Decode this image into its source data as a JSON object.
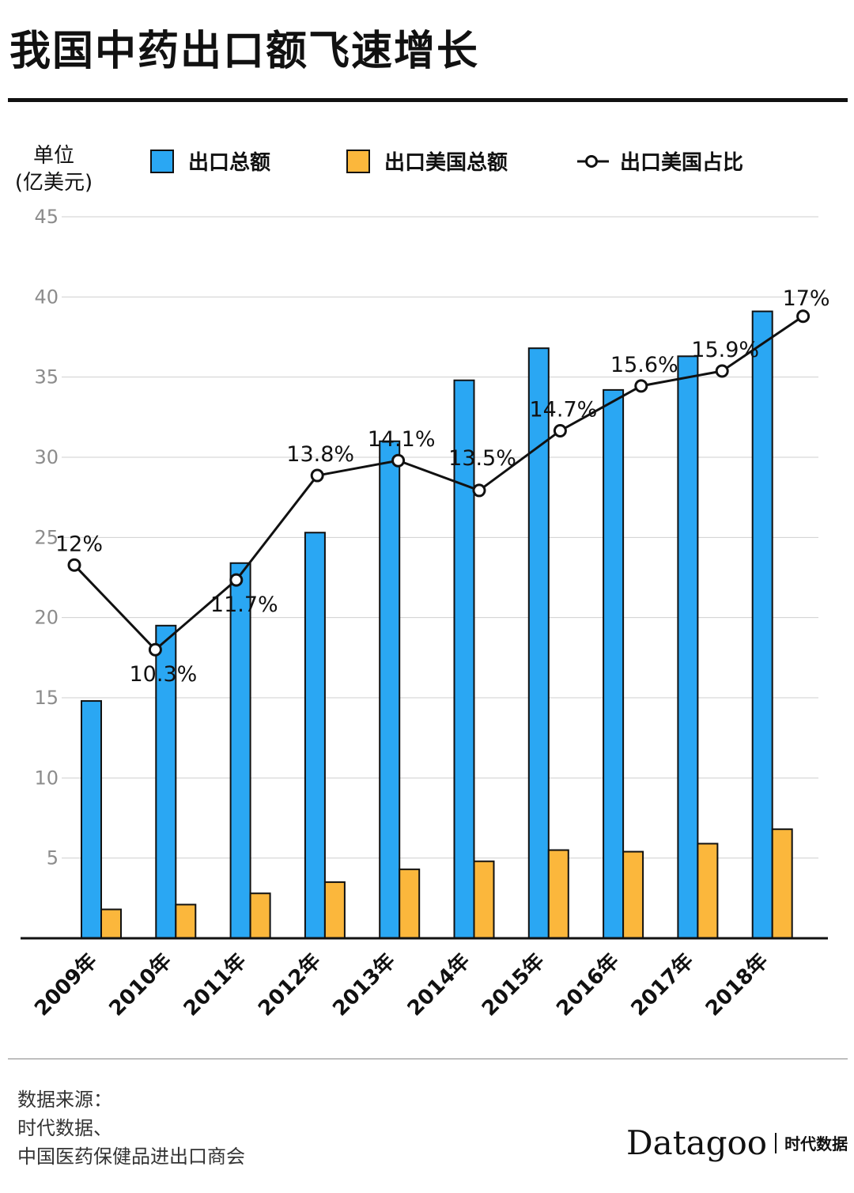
{
  "title": "我国中药出口额飞速增长",
  "unit_label": {
    "line1": "单位",
    "line2": "(亿美元)"
  },
  "legend": {
    "total": "出口总额",
    "us": "出口美国总额",
    "share": "出口美国占比"
  },
  "colors": {
    "total": "#2aa7f3",
    "us": "#fbb73c",
    "line": "#111111",
    "grid": "#cfcfcf",
    "tick": "#8c8c8c"
  },
  "source": {
    "line1": "数据来源：",
    "line2": "时代数据、",
    "line3": "中国医药保健品进出口商会"
  },
  "brand": {
    "name": "Datagoo",
    "cn": "时代数据"
  },
  "chart_data": {
    "type": "bar",
    "categories": [
      "2009年",
      "2010年",
      "2011年",
      "2012年",
      "2013年",
      "2014年",
      "2015年",
      "2016年",
      "2017年",
      "2018年"
    ],
    "ylim": [
      0,
      45
    ],
    "yticks": [
      5,
      10,
      15,
      20,
      25,
      30,
      35,
      40,
      45
    ],
    "series": [
      {
        "name": "出口总额",
        "values": [
          14.8,
          19.5,
          23.4,
          25.3,
          31.0,
          34.8,
          36.8,
          34.2,
          36.3,
          39.1
        ]
      },
      {
        "name": "出口美国总额",
        "values": [
          1.8,
          2.1,
          2.8,
          3.5,
          4.3,
          4.8,
          5.5,
          5.4,
          5.9,
          6.8
        ]
      }
    ],
    "line_series": {
      "name": "出口美国占比",
      "values": [
        12,
        10.3,
        11.7,
        13.8,
        14.1,
        13.5,
        14.7,
        15.6,
        15.9,
        17
      ],
      "labels": [
        "12%",
        "10.3%",
        "11.7%",
        "13.8%",
        "14.1%",
        "13.5%",
        "14.7%",
        "15.6%",
        "15.9%",
        "17%"
      ]
    },
    "grid": true,
    "legend_position": "top"
  }
}
